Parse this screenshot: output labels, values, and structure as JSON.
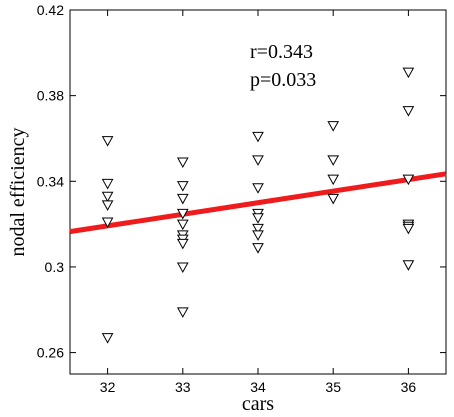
{
  "chart_data": {
    "type": "scatter",
    "title": "",
    "xlabel": "cars",
    "ylabel": "nodal efficiency",
    "xlim": [
      31.5,
      36.5
    ],
    "ylim": [
      0.25,
      0.42
    ],
    "xticks": [
      32,
      33,
      34,
      35,
      36
    ],
    "yticks": [
      0.26,
      0.3,
      0.34,
      0.38,
      0.42
    ],
    "xtick_labels": [
      "32",
      "33",
      "34",
      "35",
      "36"
    ],
    "ytick_labels": [
      "0.26",
      "0.3",
      "0.34",
      "0.38",
      "0.42"
    ],
    "grid": false,
    "marker": "downward-triangle",
    "points": [
      {
        "x": 32,
        "y": 0.359
      },
      {
        "x": 32,
        "y": 0.339
      },
      {
        "x": 32,
        "y": 0.333
      },
      {
        "x": 32,
        "y": 0.329
      },
      {
        "x": 32,
        "y": 0.321
      },
      {
        "x": 32,
        "y": 0.267
      },
      {
        "x": 33,
        "y": 0.349
      },
      {
        "x": 33,
        "y": 0.338
      },
      {
        "x": 33,
        "y": 0.332
      },
      {
        "x": 33,
        "y": 0.325
      },
      {
        "x": 33,
        "y": 0.32
      },
      {
        "x": 33,
        "y": 0.315
      },
      {
        "x": 33,
        "y": 0.313
      },
      {
        "x": 33,
        "y": 0.311
      },
      {
        "x": 33,
        "y": 0.3
      },
      {
        "x": 33,
        "y": 0.279
      },
      {
        "x": 34,
        "y": 0.361
      },
      {
        "x": 34,
        "y": 0.35
      },
      {
        "x": 34,
        "y": 0.337
      },
      {
        "x": 34,
        "y": 0.325
      },
      {
        "x": 34,
        "y": 0.323
      },
      {
        "x": 34,
        "y": 0.318
      },
      {
        "x": 34,
        "y": 0.315
      },
      {
        "x": 34,
        "y": 0.309
      },
      {
        "x": 35,
        "y": 0.366
      },
      {
        "x": 35,
        "y": 0.35
      },
      {
        "x": 35,
        "y": 0.341
      },
      {
        "x": 35,
        "y": 0.332
      },
      {
        "x": 36,
        "y": 0.391
      },
      {
        "x": 36,
        "y": 0.373
      },
      {
        "x": 36,
        "y": 0.341
      },
      {
        "x": 36,
        "y": 0.32
      },
      {
        "x": 36,
        "y": 0.319
      },
      {
        "x": 36,
        "y": 0.318
      },
      {
        "x": 36,
        "y": 0.301
      }
    ],
    "fit_line": {
      "x": [
        31.5,
        36.5
      ],
      "y": [
        0.3165,
        0.3435
      ],
      "color": "#ee1c1c"
    },
    "annotations": [
      "r=0.343",
      "p=0.033"
    ]
  }
}
